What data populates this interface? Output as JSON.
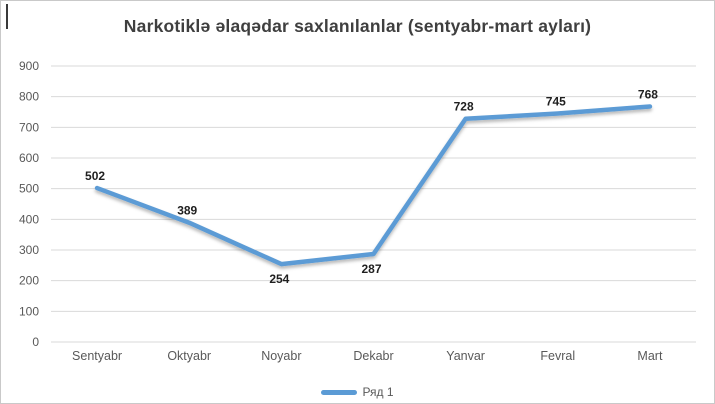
{
  "title": "Narkotiklə əlaqədar saxlanılanlar (sentyabr-mart ayları)",
  "legend": {
    "label": "Ряд 1",
    "marker_color": "#5B9BD5"
  },
  "colors": {
    "line": "#5B9BD5",
    "gridline": "#D9D9D9",
    "axis_text": "#595959",
    "title_text": "#3f3f3f",
    "data_label": "#1f1f1f",
    "frame_border": "#c9c9c9",
    "background": "#ffffff"
  },
  "chart_data": {
    "type": "line",
    "title": "Narkotiklə əlaqədar saxlanılanlar (sentyabr-mart ayları)",
    "categories": [
      "Sentyabr",
      "Oktyabr",
      "Noyabr",
      "Dekabr",
      "Yanvar",
      "Fevral",
      "Mart"
    ],
    "series": [
      {
        "name": "Ряд 1",
        "values": [
          502,
          389,
          254,
          287,
          728,
          745,
          768
        ]
      }
    ],
    "data_labels": [
      502,
      389,
      254,
      287,
      728,
      745,
      768
    ],
    "label_positions": [
      "above",
      "above",
      "below",
      "below",
      "above",
      "above",
      "above"
    ],
    "xlabel": "",
    "ylabel": "",
    "ylim": [
      0,
      900
    ],
    "yticks": [
      0,
      100,
      200,
      300,
      400,
      500,
      600,
      700,
      800,
      900
    ],
    "grid": true,
    "legend_position": "bottom",
    "markers": false
  }
}
